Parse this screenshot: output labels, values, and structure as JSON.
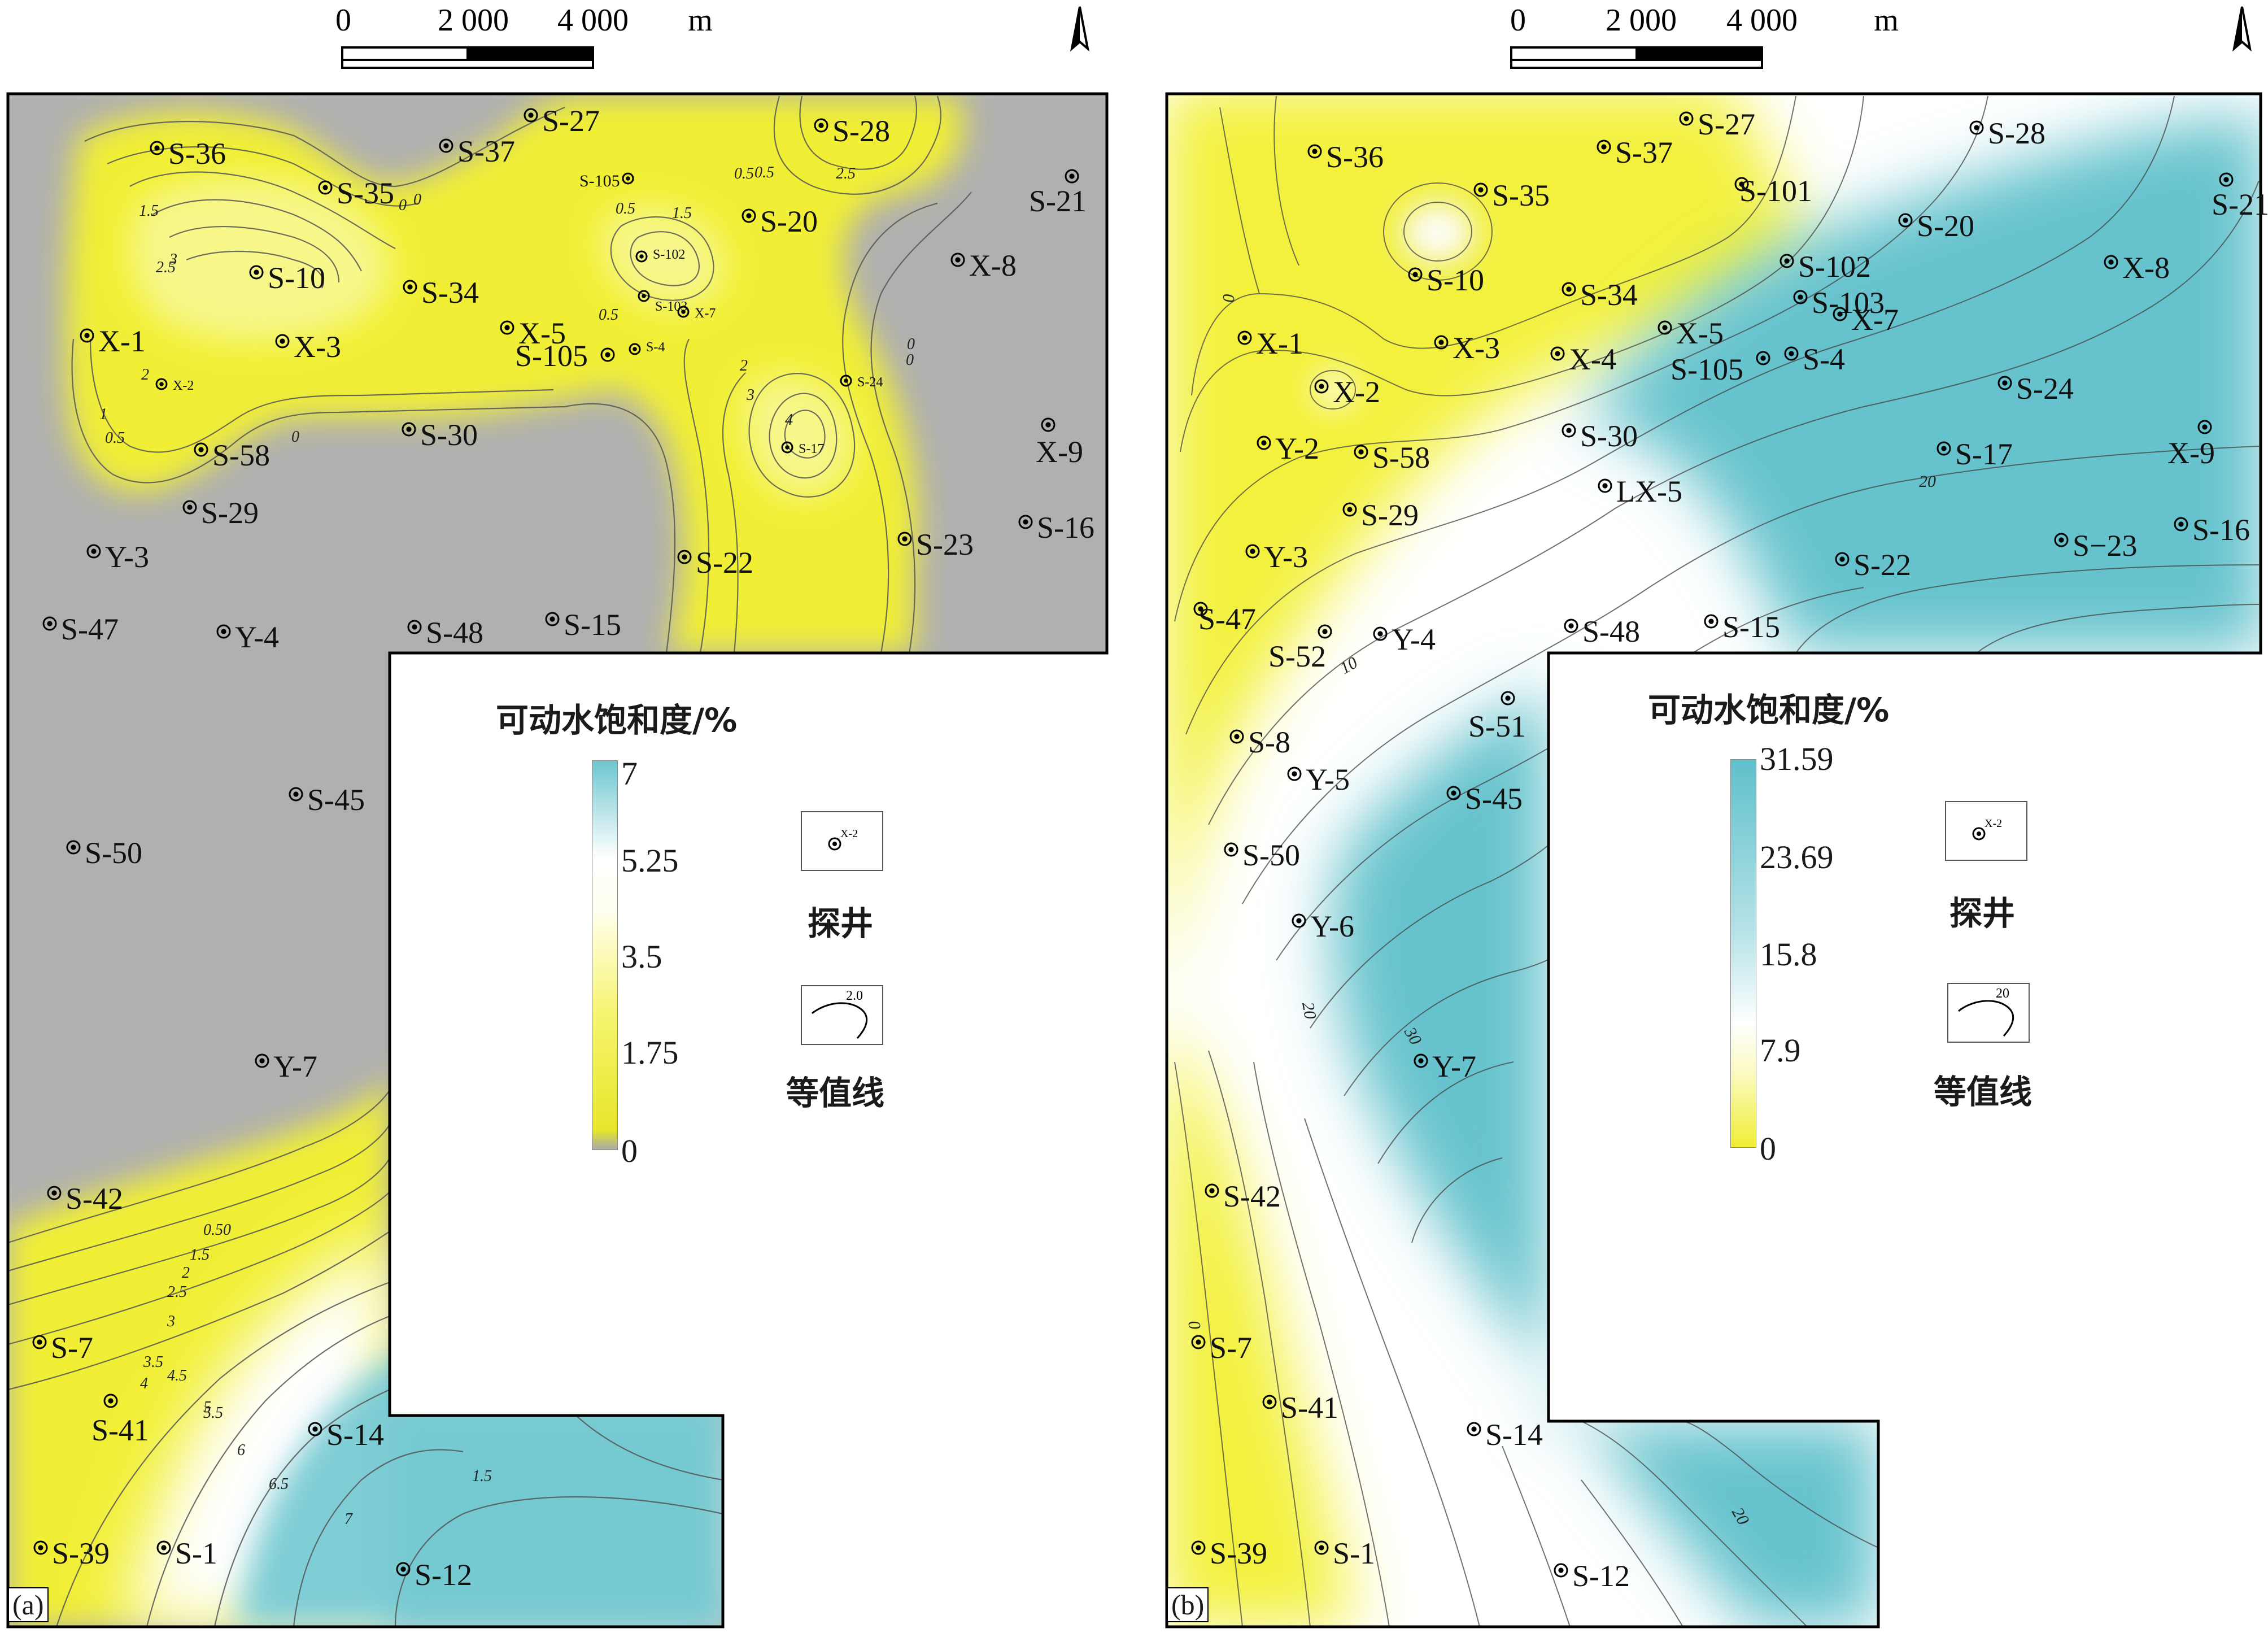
{
  "panels": [
    {
      "id": "a",
      "tag": "(a)",
      "legend": {
        "title": "可动水饱和度/%",
        "ticks": [
          "7",
          "5.25",
          "3.5",
          "1.75",
          "0"
        ],
        "well_symbol_label": "探井",
        "well_symbol_sample": "X-2",
        "contour_symbol_label": "等值线",
        "contour_symbol_sample": "2.0",
        "colors": [
          "#6ec6cf",
          "#ffffff",
          "#f2f23a",
          "#a9a9a9"
        ]
      },
      "scale_bar": {
        "ticks": [
          "0",
          "2 000",
          "4 000"
        ],
        "unit": "m"
      },
      "wells": [
        "S-36",
        "S-37",
        "S-27",
        "S-28",
        "S-21",
        "S-35",
        "S-105_top",
        "S-20",
        "X-8",
        "S-10",
        "S-34",
        "X-5",
        "X-1",
        "X-3",
        "S-105",
        "X-2",
        "S-102",
        "S-103",
        "X-7",
        "S-4",
        "S-24",
        "S-30",
        "X-9",
        "S-58",
        "S-17",
        "S-29",
        "S-16",
        "S-23",
        "Y-3",
        "S-22",
        "S-47",
        "Y-4",
        "S-48",
        "S-15",
        "S-45",
        "S-50",
        "Y-7",
        "S-42",
        "S-7",
        "S-41",
        "S-14",
        "S-39",
        "S-1",
        "S-12"
      ],
      "well_labels": {
        "S-36": "S-36",
        "S-37": "S-37",
        "S-27": "S-27",
        "S-28": "S-28",
        "S-21": "S-21",
        "S-35": "S-35",
        "S-105_top": "S-105",
        "S-20": "S-20",
        "X-8": "X-8",
        "S-10": "S-10",
        "S-34": "S-34",
        "X-5": "X-5",
        "X-1": "X-1",
        "X-3": "X-3",
        "S-105": "S-105",
        "X-2": "X-2",
        "S-102": "S-102",
        "S-103": "S-103",
        "X-7": "X-7",
        "S-4": "S-4",
        "S-24": "S-24",
        "S-30": "S-30",
        "X-9": "X-9",
        "S-58": "S-58",
        "S-17": "S-17",
        "S-29": "S-29",
        "S-16": "S-16",
        "S-23": "S-23",
        "Y-3": "Y-3",
        "S-22": "S-22",
        "S-47": "S-47",
        "Y-4": "Y-4",
        "S-48": "S-48",
        "S-15": "S-15",
        "S-45": "S-45",
        "S-50": "S-50",
        "Y-7": "Y-7",
        "S-42": "S-42",
        "S-7": "S-7",
        "S-41": "S-41",
        "S-14": "S-14",
        "S-39": "S-39",
        "S-1": "S-1",
        "S-12": "S-12"
      },
      "contour_labels": [
        "1.5",
        "3",
        "2.5",
        "2",
        "1",
        "0.5",
        "0",
        "5",
        "4.5",
        "3.5",
        "5.5",
        "6",
        "6.5",
        "7",
        "1.5",
        "0.5",
        "2.5",
        "2",
        "3",
        "4",
        "0.5",
        "1",
        "0",
        "0",
        "0.5",
        "1.5",
        "0.5",
        "0",
        "0",
        "0.50",
        "1.5",
        "2",
        "2.5",
        "3",
        "3.5",
        "4",
        "4.5",
        "5"
      ]
    },
    {
      "id": "b",
      "tag": "(b)",
      "legend": {
        "title": "可动水饱和度/%",
        "ticks": [
          "31.59",
          "23.69",
          "15.8",
          "7.9",
          "0"
        ],
        "well_symbol_label": "探井",
        "well_symbol_sample": "X-2",
        "contour_symbol_label": "等值线",
        "contour_symbol_sample": "20",
        "colors": [
          "#5fc0cb",
          "#ffffff",
          "#f2f23a"
        ]
      },
      "scale_bar": {
        "ticks": [
          "0",
          "2 000",
          "4 000"
        ],
        "unit": "m"
      },
      "well_labels": {
        "S-36": "S-36",
        "S-37": "S-37",
        "S-27": "S-27",
        "S-28": "S-28",
        "S-21": "S-21",
        "S-35": "S-35",
        "S-101": "S-101",
        "S-20": "S-20",
        "X-8": "X-8",
        "S-10": "S-10",
        "S-34": "S-34",
        "S-102": "S-102",
        "S-103": "S-103",
        "X-5": "X-5",
        "X-7": "X-7",
        "X-1": "X-1",
        "X-3": "X-3",
        "X-4": "X-4",
        "S-105": "S-105",
        "S-4": "S-4",
        "X-2": "X-2",
        "S-24": "S-24",
        "S-30": "S-30",
        "Y-2": "Y-2",
        "S-58": "S-58",
        "S-17": "S-17",
        "X-9": "X-9",
        "LX-5": "LX-5",
        "S-29": "S-29",
        "S-23": "S−23",
        "S-16": "S-16",
        "Y-3": "Y-3",
        "S-22": "S-22",
        "S-47": "S-47",
        "S-52": "S-52",
        "Y-4": "Y-4",
        "S-48": "S-48",
        "S-15": "S-15",
        "S-51": "S-51",
        "S-8": "S-8",
        "Y-5": "Y-5",
        "S-45": "S-45",
        "S-50": "S-50",
        "Y-6": "Y-6",
        "Y-7": "Y-7",
        "S-42": "S-42",
        "S-7": "S-7",
        "S-41": "S-41",
        "S-14": "S-14",
        "S-39": "S-39",
        "S-1": "S-1",
        "S-12": "S-12"
      },
      "contour_labels": [
        "0",
        "20",
        "10",
        "20",
        "30",
        "20",
        "0"
      ]
    }
  ]
}
